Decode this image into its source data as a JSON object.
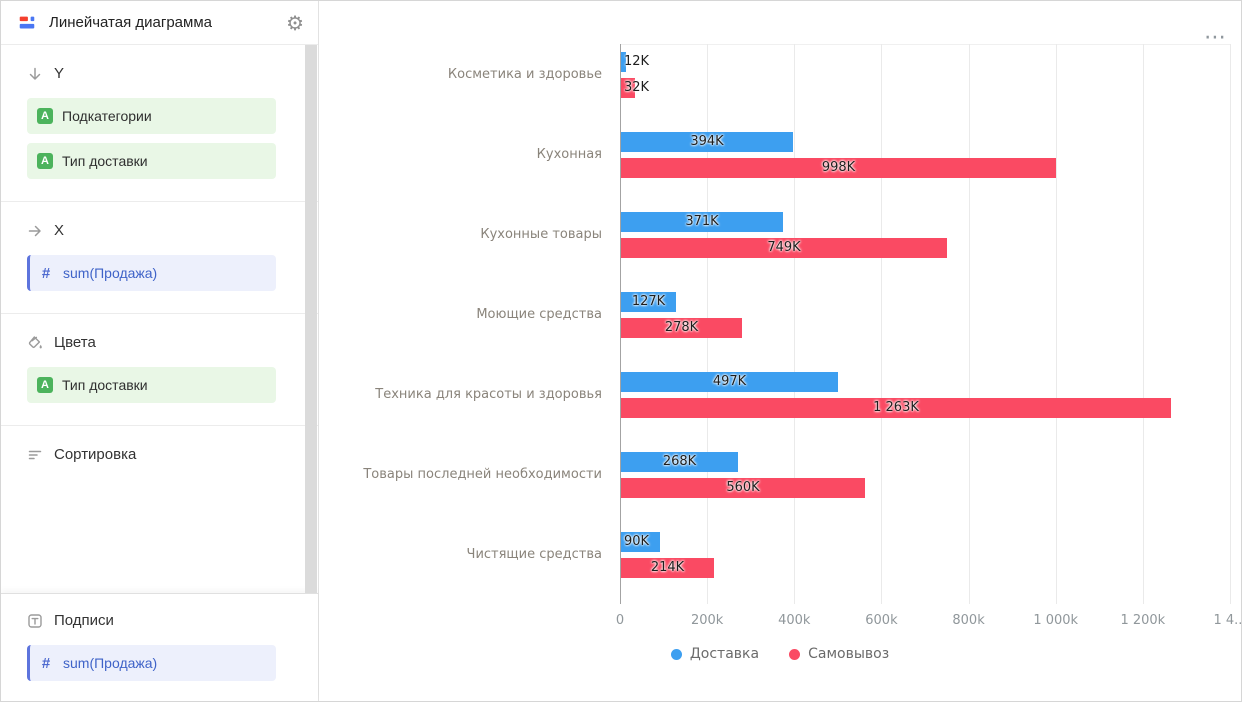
{
  "header": {
    "title": "Линейчатая диаграмма"
  },
  "icons": {
    "gear": "⚙",
    "menu_ellipsis": "⋯",
    "dimension_letter": "A",
    "measure_hash": "#"
  },
  "sidebar": {
    "sections": [
      {
        "label": "Y",
        "icon": "arrow-down-icon",
        "fields": [
          {
            "label": "Подкатегории"
          },
          {
            "label": "Тип доставки"
          }
        ]
      },
      {
        "label": "X",
        "icon": "arrow-right-icon",
        "fields": [
          {
            "label": "sum(Продажа)"
          }
        ]
      },
      {
        "label": "Цвета",
        "icon": "paint-bucket-icon",
        "fields": [
          {
            "label": "Тип доставки"
          }
        ]
      },
      {
        "label": "Сортировка",
        "icon": "sort-icon",
        "fields": []
      },
      {
        "label": "Подписи",
        "icon": "text-icon",
        "fields": [
          {
            "label": "sum(Продажа)"
          }
        ]
      }
    ]
  },
  "chart_data": {
    "type": "bar",
    "orientation": "horizontal",
    "title": "",
    "categories": [
      "Косметика и здоровье",
      "Кухонная",
      "Кухонные товары",
      "Моющие средства",
      "Техника для красоты и здоровья",
      "Товары последней необходимости",
      "Чистящие средства"
    ],
    "series": [
      {
        "name": "Доставка",
        "color": "#3d9ff0",
        "values_k": [
          12,
          394,
          371,
          127,
          497,
          268,
          90
        ],
        "labels": [
          "12K",
          "394K",
          "371K",
          "127K",
          "497K",
          "268K",
          "90K"
        ]
      },
      {
        "name": "Самовывоз",
        "color": "#fa4a63",
        "values_k": [
          32,
          998,
          749,
          278,
          1263,
          560,
          214
        ],
        "labels": [
          "32K",
          "998K",
          "749K",
          "278K",
          "1 263K",
          "560K",
          "214K"
        ]
      }
    ],
    "x_axis": {
      "max_k": 1400,
      "tick_values_k": [
        0,
        200,
        400,
        600,
        800,
        1000,
        1200,
        1400
      ],
      "tick_labels": [
        "0",
        "200k",
        "400k",
        "600k",
        "800k",
        "1 000k",
        "1 200k",
        "1 4..."
      ]
    },
    "legend": [
      {
        "name": "Доставка",
        "color": "#3d9ff0"
      },
      {
        "name": "Самовывоз",
        "color": "#fa4a63"
      }
    ],
    "legend_position": "bottom",
    "grid": true,
    "value_unit": "K"
  }
}
